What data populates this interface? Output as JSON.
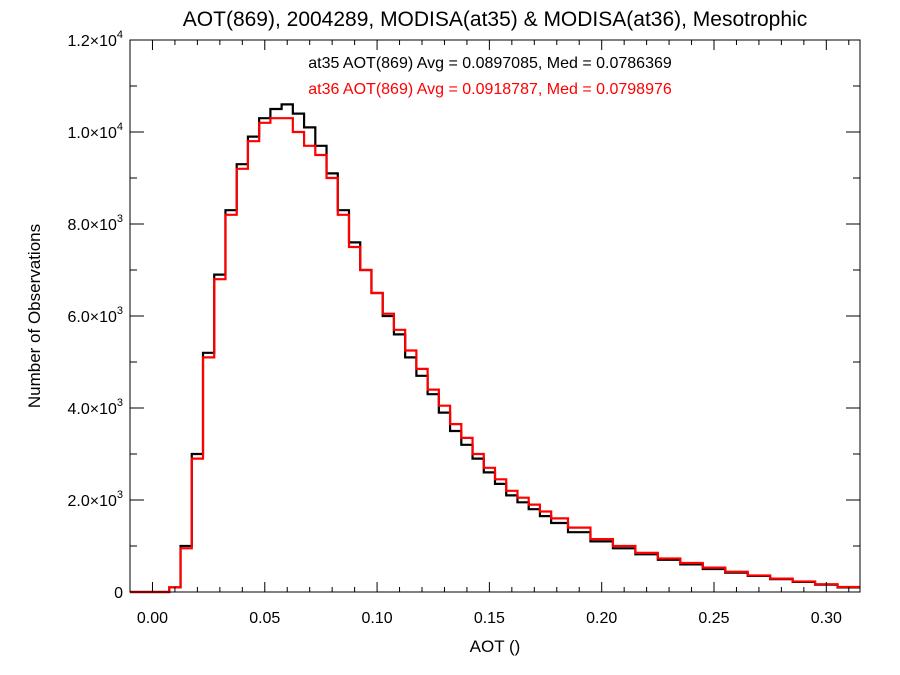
{
  "chart_data": {
    "type": "line",
    "step": true,
    "title": "AOT(869), 2004289, MODISA(at35) & MODISA(at36), Mesotrophic",
    "xlabel": "AOT ()",
    "ylabel": "Number of Observations",
    "xlim": [
      -0.01,
      0.315
    ],
    "ylim": [
      0,
      12000
    ],
    "grid": false,
    "legend_position": "top-center",
    "xticks": [
      {
        "value": 0.0,
        "label": "0.00"
      },
      {
        "value": 0.05,
        "label": "0.05"
      },
      {
        "value": 0.1,
        "label": "0.10"
      },
      {
        "value": 0.15,
        "label": "0.15"
      },
      {
        "value": 0.2,
        "label": "0.20"
      },
      {
        "value": 0.25,
        "label": "0.25"
      },
      {
        "value": 0.3,
        "label": "0.30"
      }
    ],
    "yticks": [
      {
        "value": 0,
        "mantissa": "0",
        "exponent": ""
      },
      {
        "value": 2000,
        "mantissa": "2.0×10",
        "exponent": "3"
      },
      {
        "value": 4000,
        "mantissa": "4.0×10",
        "exponent": "3"
      },
      {
        "value": 6000,
        "mantissa": "6.0×10",
        "exponent": "3"
      },
      {
        "value": 8000,
        "mantissa": "8.0×10",
        "exponent": "3"
      },
      {
        "value": 10000,
        "mantissa": "1.0×10",
        "exponent": "4"
      },
      {
        "value": 12000,
        "mantissa": "1.2×10",
        "exponent": "4"
      }
    ],
    "annotations": [
      {
        "text": "at35 AOT(869) Avg = 0.0897085, Med = 0.0786369",
        "color": "#000000"
      },
      {
        "text": "at36 AOT(869) Avg = 0.0918787, Med = 0.0798976",
        "color": "#ff0000"
      }
    ],
    "x": [
      0.0,
      0.005,
      0.01,
      0.015,
      0.02,
      0.025,
      0.03,
      0.035,
      0.04,
      0.045,
      0.05,
      0.055,
      0.06,
      0.065,
      0.07,
      0.075,
      0.08,
      0.085,
      0.09,
      0.095,
      0.1,
      0.105,
      0.11,
      0.115,
      0.12,
      0.125,
      0.13,
      0.135,
      0.14,
      0.145,
      0.15,
      0.155,
      0.16,
      0.165,
      0.17,
      0.175,
      0.18,
      0.19,
      0.2,
      0.21,
      0.22,
      0.23,
      0.24,
      0.25,
      0.26,
      0.27,
      0.28,
      0.29,
      0.3,
      0.31
    ],
    "series": [
      {
        "color": "#000000",
        "values": [
          0,
          0,
          100,
          1000,
          3000,
          5200,
          6900,
          8300,
          9300,
          9900,
          10300,
          10500,
          10600,
          10400,
          10100,
          9700,
          9100,
          8300,
          7600,
          7000,
          6500,
          6000,
          5600,
          5100,
          4700,
          4300,
          3900,
          3500,
          3200,
          2900,
          2600,
          2350,
          2100,
          1950,
          1800,
          1650,
          1500,
          1300,
          1100,
          950,
          820,
          700,
          600,
          500,
          420,
          350,
          280,
          220,
          160,
          100
        ]
      },
      {
        "color": "#ff0000",
        "values": [
          0,
          0,
          100,
          950,
          2900,
          5100,
          6800,
          8200,
          9200,
          9800,
          10200,
          10300,
          10300,
          10000,
          9700,
          9500,
          9000,
          8200,
          7500,
          7000,
          6500,
          6050,
          5700,
          5250,
          4850,
          4400,
          4050,
          3650,
          3350,
          3000,
          2700,
          2450,
          2200,
          2050,
          1900,
          1750,
          1600,
          1400,
          1150,
          1000,
          850,
          730,
          630,
          530,
          440,
          360,
          290,
          230,
          170,
          110
        ]
      }
    ]
  }
}
